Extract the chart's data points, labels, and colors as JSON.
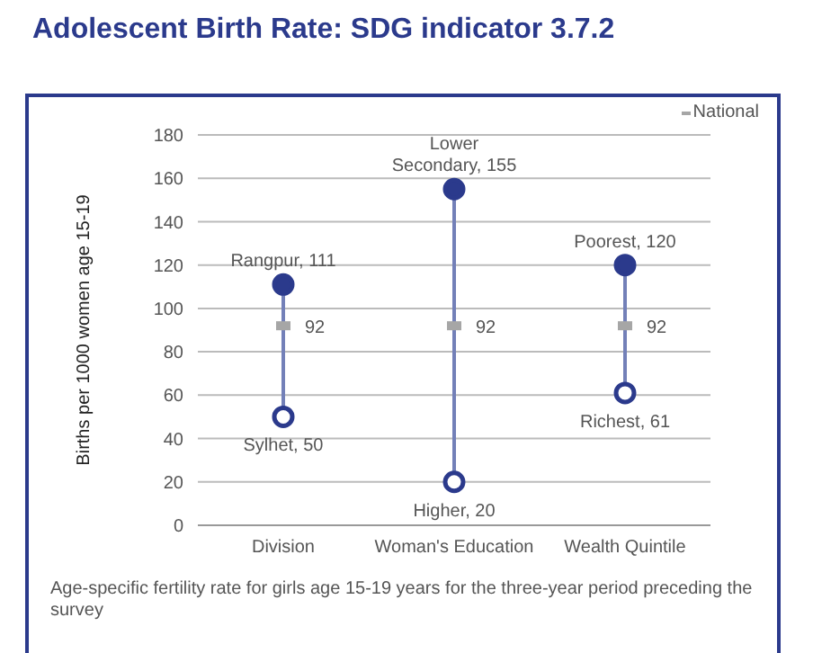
{
  "chart_data": {
    "type": "scatter",
    "title": "Adolescent Birth Rate: SDG indicator 3.7.2",
    "ylabel": "Births per 1000 women age 15-19",
    "categories": [
      "Division",
      "Woman's Education",
      "Wealth Quintile"
    ],
    "series": [
      {
        "type": "line",
        "color": "#7380b8",
        "x": [
          "Division",
          "Division"
        ],
        "values": [
          50,
          111
        ],
        "marker": "none"
      },
      {
        "type": "line",
        "color": "#7380b8",
        "x": [
          "Woman's Education",
          "Woman's Education"
        ],
        "values": [
          20,
          155
        ],
        "marker": "none"
      },
      {
        "type": "line",
        "color": "#7380b8",
        "x": [
          "Wealth Quintile",
          "Wealth Quintile"
        ],
        "values": [
          61,
          120
        ],
        "marker": "none"
      },
      {
        "color": "#2b3a8c",
        "marker": "circle",
        "values": [
          111,
          155,
          120
        ],
        "value_labels": [
          "Rangpur, 111",
          "Lower Secondary, 155",
          "Poorest, 120"
        ]
      },
      {
        "color": "#2b3a8c",
        "marker": "circle",
        "values": [
          50,
          20,
          61
        ],
        "value_labels": [
          "Sylhet, 50",
          "Higher, 20",
          "Richest, 61"
        ]
      },
      {
        "name": "National",
        "color": "#a6a6a6",
        "marker": "square",
        "values": [
          92,
          92,
          92
        ],
        "value_labels": [
          "92",
          "92",
          "92"
        ]
      }
    ],
    "ylim": [
      0,
      180
    ],
    "yticks": [
      0,
      20,
      40,
      60,
      80,
      100,
      120,
      140,
      160,
      180
    ],
    "grid": "y",
    "legend": "top right",
    "annotations": [
      "Age-specific fertility rate for girls age 15-19 years for the three-year period preceding the survey"
    ]
  }
}
